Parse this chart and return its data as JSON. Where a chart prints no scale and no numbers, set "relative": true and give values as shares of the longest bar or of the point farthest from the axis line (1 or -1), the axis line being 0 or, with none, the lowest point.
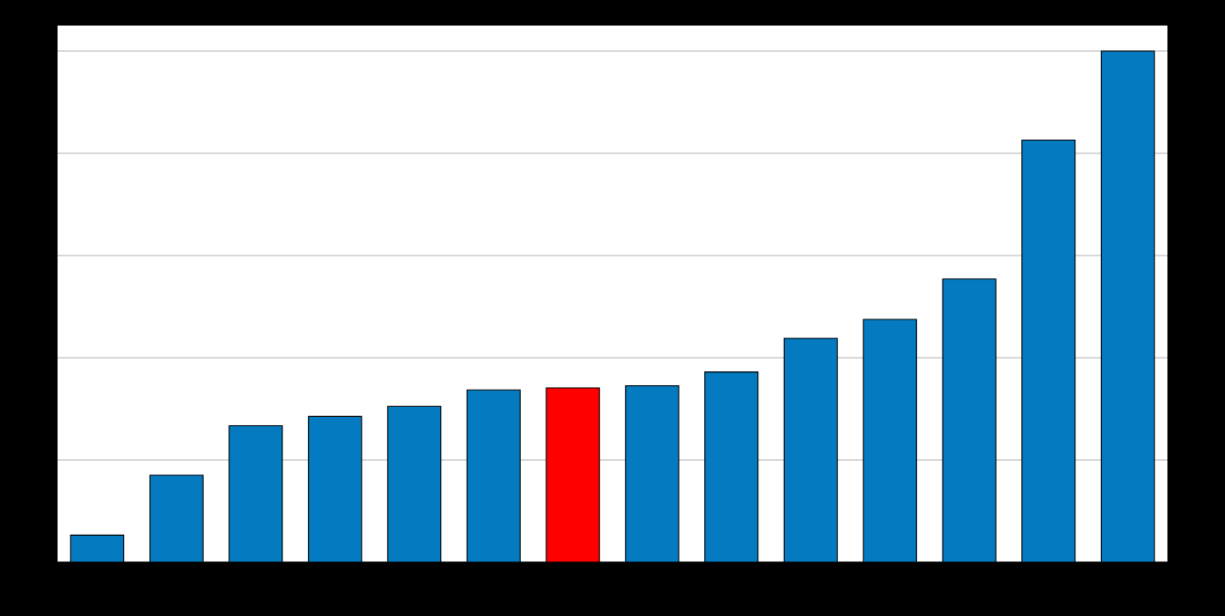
{
  "chart_data": {
    "type": "bar",
    "relative": true,
    "categories": [
      null,
      null,
      null,
      null,
      null,
      null,
      null,
      null,
      null,
      null,
      null,
      null,
      null,
      null
    ],
    "values": [
      0.053,
      0.17,
      0.267,
      0.285,
      0.305,
      0.337,
      0.341,
      0.345,
      0.372,
      0.438,
      0.475,
      0.554,
      0.826,
      1
    ],
    "colors": [
      "#047bc1",
      "#047bc1",
      "#047bc1",
      "#047bc1",
      "#047bc1",
      "#047bc1",
      "#ff0000",
      "#047bc1",
      "#047bc1",
      "#047bc1",
      "#047bc1",
      "#047bc1",
      "#047bc1",
      "#047bc1"
    ],
    "grid": "y"
  }
}
